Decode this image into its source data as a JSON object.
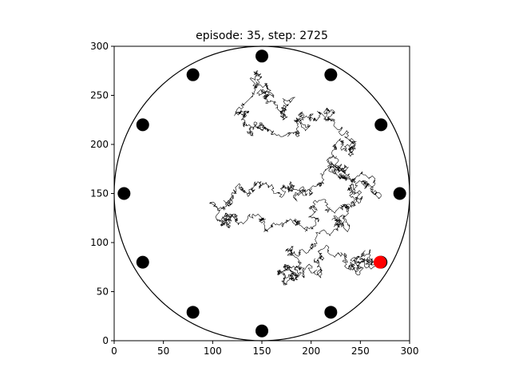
{
  "chart_data": {
    "type": "scatter",
    "title": "episode: 35, step: 2725",
    "xlabel": "",
    "ylabel": "",
    "xlim": [
      0,
      300
    ],
    "ylim": [
      0,
      300
    ],
    "xticks": [
      0,
      50,
      100,
      150,
      200,
      250,
      300
    ],
    "yticks": [
      0,
      50,
      100,
      150,
      200,
      250,
      300
    ],
    "grid": false,
    "legend": null,
    "boundary_circle": {
      "cx": 150,
      "cy": 150,
      "r": 150,
      "color": "#000000"
    },
    "targets": {
      "color": "#000000",
      "points": [
        {
          "x": 150,
          "y": 290
        },
        {
          "x": 220,
          "y": 271
        },
        {
          "x": 271,
          "y": 220
        },
        {
          "x": 290,
          "y": 150
        },
        {
          "x": 271,
          "y": 80
        },
        {
          "x": 220,
          "y": 29
        },
        {
          "x": 150,
          "y": 10
        },
        {
          "x": 80,
          "y": 29
        },
        {
          "x": 29,
          "y": 80
        },
        {
          "x": 10,
          "y": 150
        },
        {
          "x": 29,
          "y": 220
        },
        {
          "x": 80,
          "y": 271
        }
      ]
    },
    "agent": {
      "x": 270,
      "y": 80,
      "color": "#ff0000"
    },
    "recent_step": {
      "x": [
        265,
        270
      ],
      "y": [
        81,
        80
      ],
      "color": "#0000ff"
    },
    "trajectory": {
      "color": "#000000",
      "steps": 2725,
      "seed": 35,
      "start": [
        178,
        242
      ],
      "waypoints": [
        {
          "x": 178,
          "y": 242
        },
        {
          "x": 145,
          "y": 252
        },
        {
          "x": 128,
          "y": 232
        },
        {
          "x": 175,
          "y": 210
        },
        {
          "x": 215,
          "y": 225
        },
        {
          "x": 238,
          "y": 205
        },
        {
          "x": 235,
          "y": 165
        },
        {
          "x": 200,
          "y": 150
        },
        {
          "x": 150,
          "y": 158
        },
        {
          "x": 105,
          "y": 122
        },
        {
          "x": 150,
          "y": 125
        },
        {
          "x": 205,
          "y": 132
        },
        {
          "x": 255,
          "y": 160
        },
        {
          "x": 232,
          "y": 118
        },
        {
          "x": 188,
          "y": 92
        },
        {
          "x": 168,
          "y": 70
        },
        {
          "x": 210,
          "y": 72
        },
        {
          "x": 258,
          "y": 85
        },
        {
          "x": 270,
          "y": 80
        }
      ]
    }
  }
}
